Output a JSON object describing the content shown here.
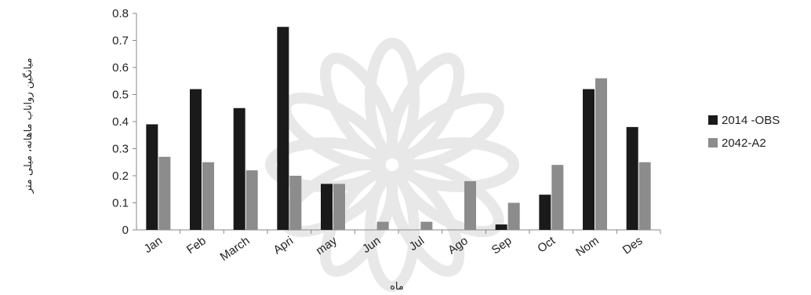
{
  "chart_data": {
    "type": "bar",
    "categories": [
      "Jan",
      "Feb",
      "March",
      "Apri",
      "may",
      "Jun",
      "Jul",
      "Ago",
      "Sep",
      "Oct",
      "Nom",
      "Des"
    ],
    "series": [
      {
        "name": "2014 -OBS",
        "values": [
          0.39,
          0.52,
          0.45,
          0.75,
          0.17,
          0,
          0,
          0,
          0.02,
          0.13,
          0.52,
          0.38
        ],
        "color": "#1a1a1a"
      },
      {
        "name": "2042-A2",
        "values": [
          0.27,
          0.25,
          0.22,
          0.2,
          0.17,
          0.03,
          0.03,
          0.18,
          0.1,
          0.24,
          0.56,
          0.25
        ],
        "color": "#8c8c8c"
      }
    ],
    "xlabel": "ماه",
    "ylabel": "میانگین رواناب ماهانه، میلی متر",
    "ylim": [
      0,
      0.8
    ],
    "yticks": [
      0,
      0.1,
      0.2,
      0.3,
      0.4,
      0.5,
      0.6,
      0.7,
      0.8
    ],
    "ytick_labels": [
      "0",
      "0.1",
      "0.2",
      "0.3",
      "0.4",
      "0.5",
      "0.6",
      "0.7",
      "0.8"
    ],
    "grid": false,
    "legend_position": "right"
  }
}
